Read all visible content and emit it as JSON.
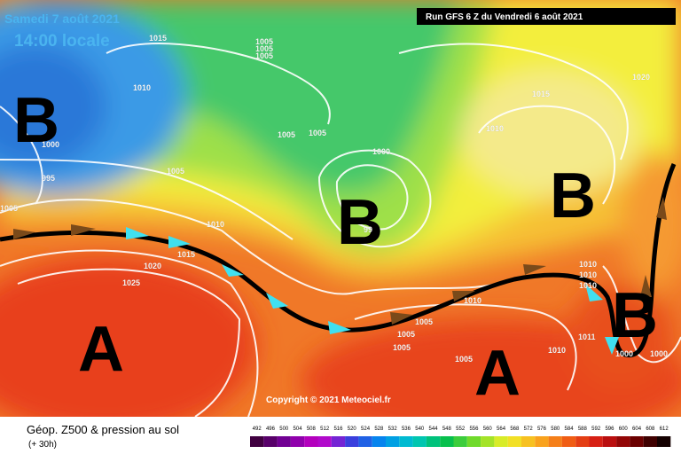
{
  "header": {
    "date": "Samedi 7 août 2021",
    "time": "14:00 locale",
    "run": "Run GFS 6 Z du Vendredi 6 août 2021"
  },
  "pressure_centers": [
    "B",
    "B",
    "B",
    "A",
    "A",
    "B"
  ],
  "isobar_labels": [
    "1015",
    "1005",
    "1005",
    "1005",
    "1010",
    "1000",
    "995",
    "1005",
    "1005",
    "1005",
    "1005",
    "1000",
    "99",
    "1010",
    "1015",
    "1020",
    "1025",
    "1005",
    "1005",
    "1005",
    "1010",
    "1005",
    "1010",
    "1010",
    "1015",
    "1020",
    "1010",
    "1010",
    "1010",
    "1011",
    "1000",
    "1000"
  ],
  "footer": {
    "title": "Géop. Z500 & pression au sol",
    "subtitle": "(+ 30h)",
    "copyright": "Copyright © 2021 Meteociel.fr"
  },
  "scale": [
    "492",
    "496",
    "500",
    "504",
    "508",
    "512",
    "516",
    "520",
    "524",
    "528",
    "532",
    "536",
    "540",
    "544",
    "548",
    "552",
    "556",
    "560",
    "564",
    "568",
    "572",
    "576",
    "580",
    "584",
    "588",
    "592",
    "596",
    "600",
    "604",
    "608",
    "612"
  ]
}
